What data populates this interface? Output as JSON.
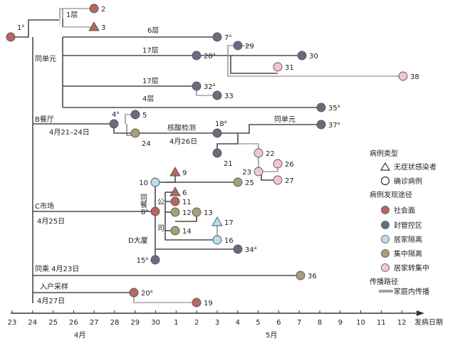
{
  "colors": {
    "community": "#b5685f",
    "controlled": "#646e7e",
    "home_isolation": "#b7ddef",
    "central_isolation": "#a89f78",
    "home_to_central": "#f4c6cc",
    "line": "#444444"
  },
  "cases": [
    {
      "id": "1",
      "label": "1",
      "sup": "a",
      "shape": "circle",
      "type": "community"
    },
    {
      "id": "2",
      "label": "2",
      "sup": "",
      "shape": "circle",
      "type": "community"
    },
    {
      "id": "3",
      "label": "3",
      "sup": "",
      "shape": "triangle",
      "type": "community"
    },
    {
      "id": "7",
      "label": "7",
      "sup": "a",
      "shape": "circle",
      "type": "controlled"
    },
    {
      "id": "28",
      "label": "28",
      "sup": "a",
      "shape": "circle",
      "type": "controlled"
    },
    {
      "id": "29",
      "label": "29",
      "sup": "",
      "shape": "circle",
      "type": "controlled"
    },
    {
      "id": "30",
      "label": "30",
      "sup": "",
      "shape": "circle",
      "type": "controlled"
    },
    {
      "id": "31",
      "label": "31",
      "sup": "",
      "shape": "circle",
      "type": "home_to_central"
    },
    {
      "id": "38",
      "label": "38",
      "sup": "",
      "shape": "circle",
      "type": "home_to_central"
    },
    {
      "id": "32",
      "label": "32",
      "sup": "a",
      "shape": "circle",
      "type": "controlled"
    },
    {
      "id": "33",
      "label": "33",
      "sup": "",
      "shape": "circle",
      "type": "controlled"
    },
    {
      "id": "35",
      "label": "35",
      "sup": "a",
      "shape": "circle",
      "type": "controlled"
    },
    {
      "id": "4",
      "label": "4",
      "sup": "a",
      "shape": "circle",
      "type": "controlled"
    },
    {
      "id": "5",
      "label": "5",
      "sup": "",
      "shape": "circle",
      "type": "controlled"
    },
    {
      "id": "24",
      "label": "24",
      "sup": "",
      "shape": "circle",
      "type": "central_isolation"
    },
    {
      "id": "18",
      "label": "18",
      "sup": "a",
      "shape": "circle",
      "type": "controlled"
    },
    {
      "id": "37",
      "label": "37",
      "sup": "a",
      "shape": "circle",
      "type": "controlled"
    },
    {
      "id": "21",
      "label": "21",
      "sup": "",
      "shape": "circle",
      "type": "controlled"
    },
    {
      "id": "22",
      "label": "22",
      "sup": "",
      "shape": "circle",
      "type": "home_to_central"
    },
    {
      "id": "23",
      "label": "23",
      "sup": "",
      "shape": "circle",
      "type": "home_to_central"
    },
    {
      "id": "26",
      "label": "26",
      "sup": "",
      "shape": "circle",
      "type": "home_to_central"
    },
    {
      "id": "27",
      "label": "27",
      "sup": "",
      "shape": "circle",
      "type": "home_to_central"
    },
    {
      "id": "10",
      "label": "10",
      "sup": "",
      "shape": "circle",
      "type": "home_isolation"
    },
    {
      "id": "9",
      "label": "9",
      "sup": "",
      "shape": "triangle",
      "type": "community"
    },
    {
      "id": "25",
      "label": "25",
      "sup": "",
      "shape": "circle",
      "type": "central_isolation"
    },
    {
      "id": "6",
      "label": "6",
      "sup": "",
      "shape": "triangle",
      "type": "community"
    },
    {
      "id": "11",
      "label": "11",
      "sup": "",
      "shape": "circle",
      "type": "community"
    },
    {
      "id": "8",
      "label": "8",
      "sup": "a",
      "shape": "circle",
      "type": "community"
    },
    {
      "id": "12",
      "label": "12",
      "sup": "",
      "shape": "circle",
      "type": "central_isolation"
    },
    {
      "id": "13",
      "label": "13",
      "sup": "",
      "shape": "circle",
      "type": "central_isolation"
    },
    {
      "id": "14",
      "label": "14",
      "sup": "",
      "shape": "circle",
      "type": "central_isolation"
    },
    {
      "id": "17",
      "label": "17",
      "sup": "",
      "shape": "triangle",
      "type": "home_isolation"
    },
    {
      "id": "16",
      "label": "16",
      "sup": "",
      "shape": "circle",
      "type": "home_isolation"
    },
    {
      "id": "15",
      "label": "15",
      "sup": "a",
      "shape": "circle",
      "type": "controlled"
    },
    {
      "id": "34",
      "label": "34",
      "sup": "a",
      "shape": "circle",
      "type": "controlled"
    },
    {
      "id": "36",
      "label": "36",
      "sup": "",
      "shape": "circle",
      "type": "central_isolation"
    },
    {
      "id": "20",
      "label": "20",
      "sup": "a",
      "shape": "circle",
      "type": "community"
    },
    {
      "id": "19",
      "label": "19",
      "sup": "",
      "shape": "circle",
      "type": "community"
    }
  ],
  "annotations": {
    "floor1": "1层",
    "floor6": "6层",
    "floor17a": "17层",
    "same_unit": "同单元",
    "floor17b": "17层",
    "floor4": "4层",
    "restaurant_b": "B餐厅",
    "restaurant_b_date": "4月21–24日",
    "nucleic_test": "核酸检测",
    "nucleic_test_date": "4月26日",
    "same_unit_2": "同单元",
    "same_table": "同餐",
    "public": "公",
    "company": "司",
    "building_d": "D大厦",
    "market_c": "C市场",
    "market_c_date": "4月25日",
    "same_ride": "同乘 4月23日",
    "household_sampling": "入户采样",
    "household_sampling_date": "4月27日"
  },
  "legend": {
    "case_type_title": "病例类型",
    "asymptomatic": "无症状感染者",
    "confirmed": "确诊病例",
    "discovery_title": "病例发现途径",
    "community": "社会面",
    "controlled": "封管控区",
    "home_isolation": "居家隔离",
    "central_isolation": "集中隔离",
    "home_to_central": "居家转集中",
    "path_title": "传播路径",
    "family": "家庭内传播"
  },
  "axis": {
    "ticks": [
      "23",
      "24",
      "25",
      "26",
      "27",
      "28",
      "29",
      "30",
      "1",
      "2",
      "3",
      "4",
      "5",
      "6",
      "7",
      "8",
      "9",
      "10",
      "11",
      "12"
    ],
    "month_april": "4月",
    "month_may": "5月",
    "xlabel": "发病日期"
  }
}
